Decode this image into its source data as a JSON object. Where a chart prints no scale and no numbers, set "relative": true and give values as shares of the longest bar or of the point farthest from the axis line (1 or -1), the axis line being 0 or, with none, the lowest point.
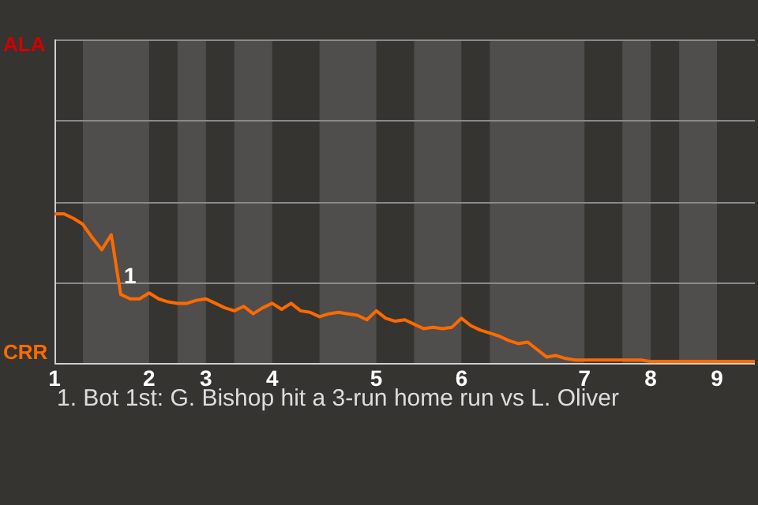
{
  "chart_data": {
    "type": "line",
    "relative": true,
    "categories": [
      "1",
      null,
      null,
      null,
      null,
      null,
      null,
      null,
      null,
      null,
      "2",
      null,
      null,
      null,
      null,
      null,
      "3",
      null,
      null,
      null,
      null,
      null,
      null,
      "4",
      null,
      null,
      null,
      null,
      null,
      null,
      null,
      null,
      null,
      null,
      "5",
      null,
      null,
      null,
      null,
      null,
      null,
      null,
      null,
      "6",
      null,
      null,
      null,
      null,
      null,
      null,
      null,
      null,
      null,
      null,
      null,
      null,
      "7",
      null,
      null,
      null,
      null,
      null,
      null,
      "8",
      null,
      null,
      null,
      null,
      null,
      null,
      "9",
      null,
      null,
      null,
      null
    ],
    "values": [
      1,
      1,
      0.97,
      0.93,
      0.84,
      0.76,
      0.86,
      0.46,
      0.43,
      0.43,
      0.47,
      0.43,
      0.41,
      0.4,
      0.4,
      0.42,
      0.43,
      0.4,
      0.37,
      0.35,
      0.38,
      0.33,
      0.37,
      0.4,
      0.36,
      0.4,
      0.35,
      0.34,
      0.31,
      0.33,
      0.34,
      0.33,
      0.32,
      0.29,
      0.35,
      0.3,
      0.28,
      0.29,
      0.26,
      0.23,
      0.24,
      0.23,
      0.24,
      0.3,
      0.25,
      0.22,
      0.2,
      0.18,
      0.15,
      0.13,
      0.14,
      0.09,
      0.04,
      0.05,
      0.03,
      0.02,
      0.02,
      0.02,
      0.02,
      0.02,
      0.02,
      0.02,
      0.02,
      0.01,
      0.01,
      0.01,
      0.01,
      0.01,
      0.01,
      0.01,
      0.01,
      0.01,
      0.01,
      0.01,
      0.01
    ],
    "color": "#ff6a00",
    "ylim": [
      0,
      2.17
    ],
    "grid": "y",
    "annotations": [
      "ALA",
      "CRR",
      "1",
      "1. Bot 1st: G. Bishop hit a 3-run home run vs L. Oliver"
    ]
  }
}
